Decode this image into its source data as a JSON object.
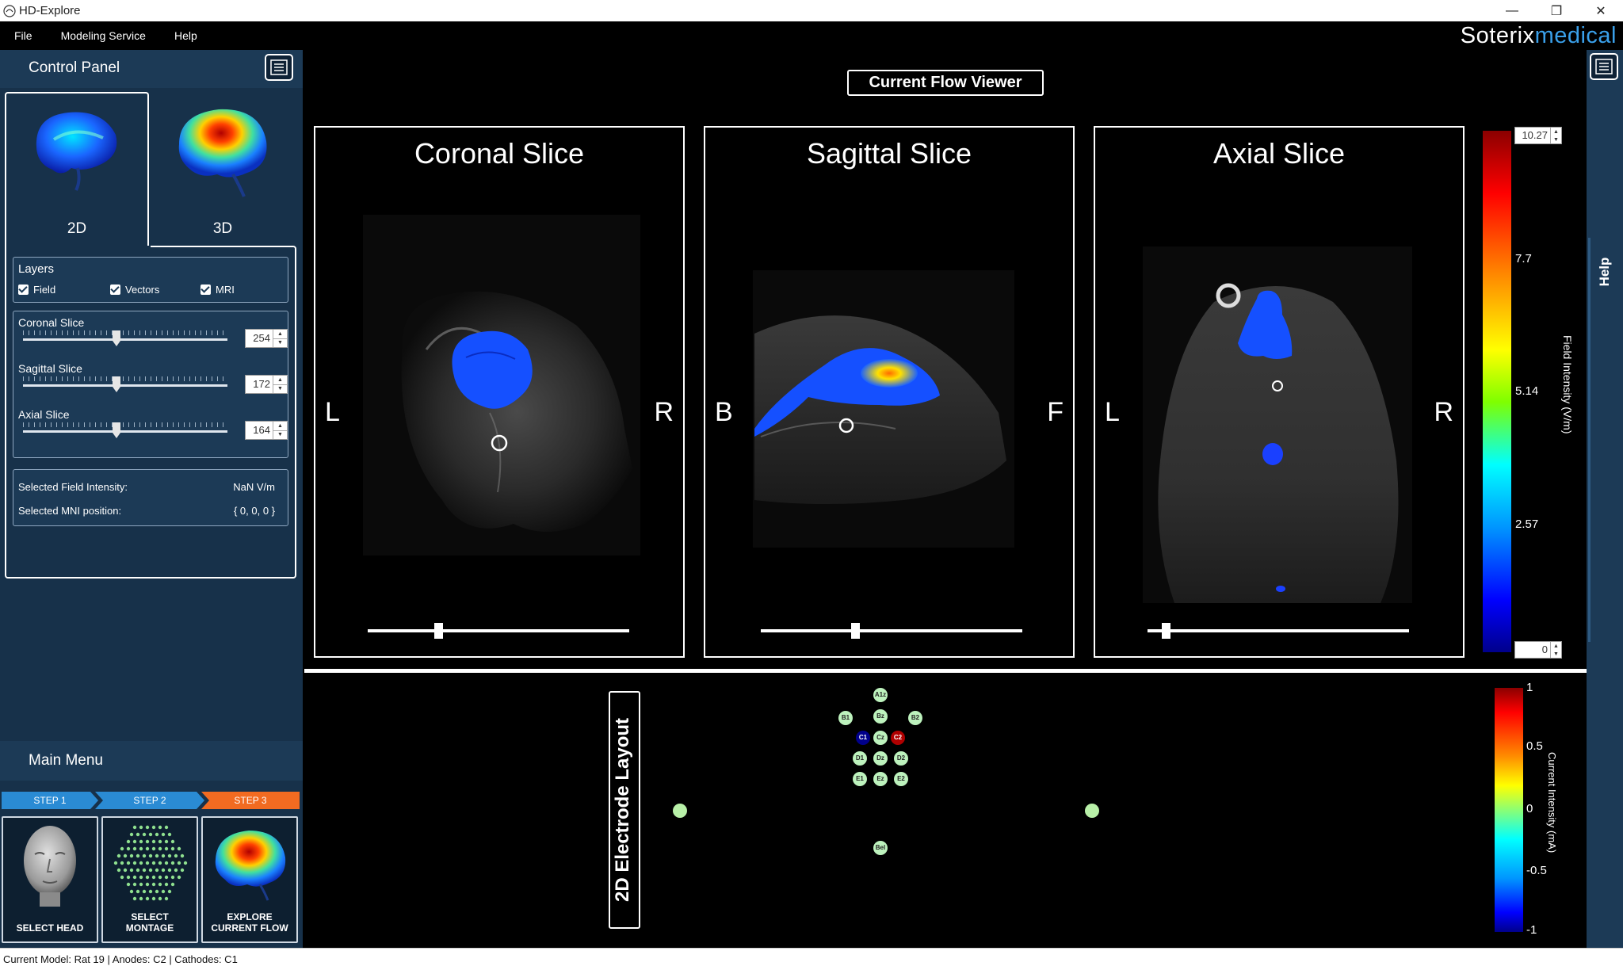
{
  "window": {
    "title": "HD-Explore",
    "minimize_glyph": "—",
    "restore_glyph": "❐",
    "close_glyph": "✕"
  },
  "menubar": {
    "items": [
      "File",
      "Modeling Service",
      "Help"
    ],
    "brand_part1": "Soterix",
    "brand_part2": "medical",
    "brand_color": "#3aa0ea"
  },
  "control_panel": {
    "title": "Control Panel",
    "tabs": [
      {
        "label": "2D",
        "active": true
      },
      {
        "label": "3D",
        "active": false
      }
    ],
    "layers": {
      "title": "Layers",
      "items": [
        {
          "label": "Field",
          "checked": true
        },
        {
          "label": "Vectors",
          "checked": true
        },
        {
          "label": "MRI",
          "checked": true
        }
      ]
    },
    "sliders": [
      {
        "label": "Coronal Slice",
        "value": "254",
        "position": 0.38
      },
      {
        "label": "Sagittal Slice",
        "value": "172",
        "position": 0.38
      },
      {
        "label": "Axial Slice",
        "value": "164",
        "position": 0.38
      }
    ],
    "selected": {
      "intensity_label": "Selected Field Intensity:",
      "intensity_value": "NaN  V/m",
      "mni_label": "Selected MNI position:",
      "mni_value": "{ 0, 0, 0 }"
    }
  },
  "main_menu": {
    "title": "Main Menu",
    "steps": [
      {
        "label": "STEP 1",
        "color": "#2a8bd4"
      },
      {
        "label": "STEP 2",
        "color": "#2a8bd4"
      },
      {
        "label": "STEP 3",
        "color": "#f26b21"
      }
    ],
    "cards": [
      {
        "label_line1": "SELECT HEAD",
        "label_line2": ""
      },
      {
        "label_line1": "SELECT",
        "label_line2": "MONTAGE"
      },
      {
        "label_line1": "EXPLORE",
        "label_line2": "CURRENT FLOW"
      }
    ]
  },
  "viewer": {
    "title": "Current Flow Viewer",
    "slices": [
      {
        "title": "Coronal Slice",
        "left_dir": "L",
        "right_dir": "R",
        "slider_position": 0.27
      },
      {
        "title": "Sagittal Slice",
        "left_dir": "B",
        "right_dir": "F",
        "slider_position": 0.36
      },
      {
        "title": "Axial Slice",
        "left_dir": "L",
        "right_dir": "R",
        "slider_position": 0.07
      }
    ],
    "colorbar": {
      "max_value": "10.27",
      "min_value": "0",
      "ticks": [
        "7.7",
        "5.14",
        "2.57"
      ],
      "label": "Field Intensity (V/m)"
    }
  },
  "electrode_layout": {
    "title": "2D Electrode Layout",
    "electrodes": [
      {
        "label": "A1z",
        "type": "normal"
      },
      {
        "label": "B1",
        "type": "normal"
      },
      {
        "label": "Bz",
        "type": "normal"
      },
      {
        "label": "B2",
        "type": "normal"
      },
      {
        "label": "C1",
        "type": "cathode"
      },
      {
        "label": "Cz",
        "type": "normal"
      },
      {
        "label": "C2",
        "type": "anode"
      },
      {
        "label": "D1",
        "type": "normal"
      },
      {
        "label": "Dz",
        "type": "normal"
      },
      {
        "label": "D2",
        "type": "normal"
      },
      {
        "label": "E1",
        "type": "normal"
      },
      {
        "label": "Ez",
        "type": "normal"
      },
      {
        "label": "E2",
        "type": "normal"
      },
      {
        "label": "Bel",
        "type": "normal"
      }
    ],
    "colorbar": {
      "ticks": [
        "1",
        "0.5",
        "0",
        "-0.5",
        "-1"
      ],
      "label": "Current Intensity (mA)"
    }
  },
  "right_strip": {
    "help_label": "Help"
  },
  "statusbar": {
    "text": "Current Model: Rat 19  |  Anodes: C2  |  Cathodes: C1"
  }
}
